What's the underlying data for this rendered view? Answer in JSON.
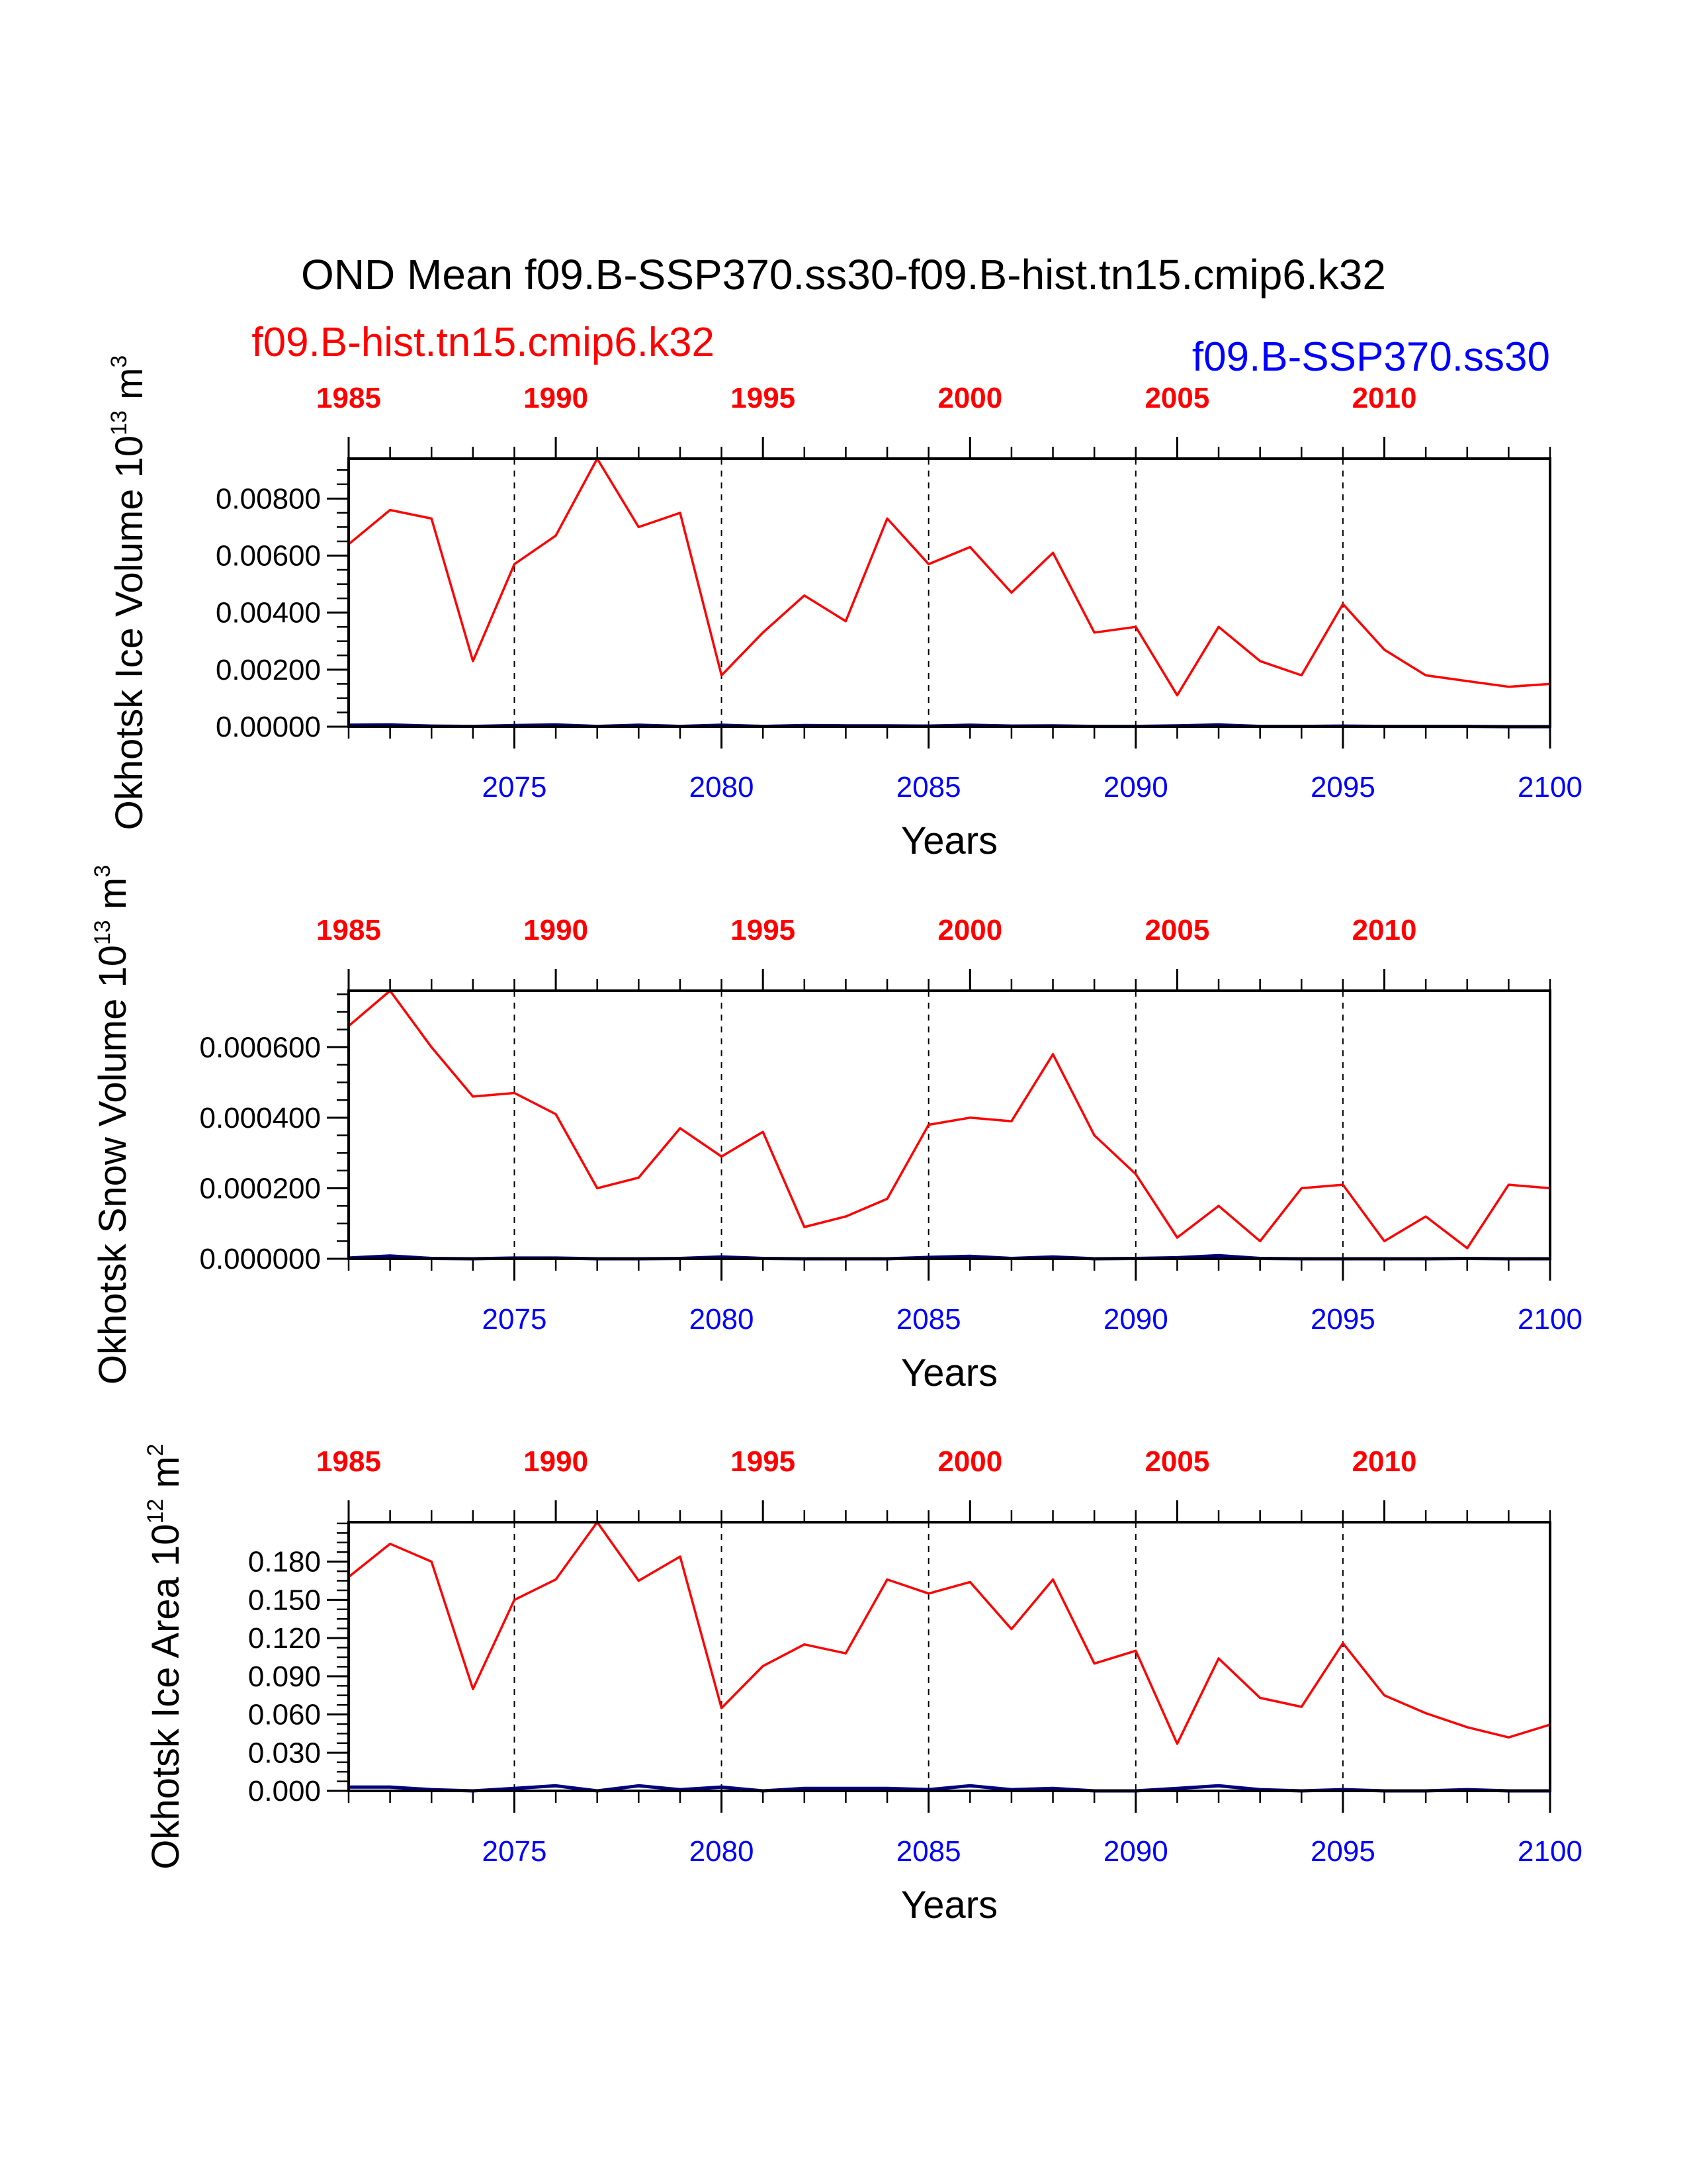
{
  "title": "OND Mean f09.B-SSP370.ss30-f09.B-hist.tn15.cmip6.k32",
  "colors": {
    "hist": "#ff0000",
    "ssp": "#0000ff",
    "ssp_line": "#000080",
    "axis": "#000000"
  },
  "experiments": [
    {
      "name": "f09.B-hist.tn15.cmip6.k32",
      "color": "#ff0000"
    },
    {
      "name": "f09.B-SSP370.ss30",
      "color": "#0000ff"
    }
  ],
  "chart_data": [
    {
      "type": "line",
      "ylabel_main": "Okhotsk Ice Volume 10",
      "ylabel_exp": "13",
      "ylabel_unit": " m",
      "ylabel_unit_exp": "3",
      "xlabel": "Years",
      "xlim": [
        2071,
        2100
      ],
      "ylim": [
        0,
        0.0094
      ],
      "yticks": [
        0,
        0.002,
        0.004,
        0.006,
        0.008
      ],
      "yticklabels": [
        "0.00000",
        "0.00200",
        "0.00400",
        "0.00600",
        "0.00800"
      ],
      "yminor": 0.0005,
      "bottom_ticks": [
        "2075",
        "2080",
        "2085",
        "2090",
        "2095",
        "2100"
      ],
      "top_ticks": [
        "1985",
        "1990",
        "1995",
        "2000",
        "2005",
        "2010"
      ],
      "series": [
        {
          "name": "f09.B-hist.tn15.cmip6.k32",
          "x": [
            2071,
            2072,
            2073,
            2074,
            2075,
            2076,
            2077,
            2078,
            2079,
            2080,
            2081,
            2082,
            2083,
            2084,
            2085,
            2086,
            2087,
            2088,
            2089,
            2090,
            2091,
            2092,
            2093,
            2094,
            2095,
            2096,
            2097,
            2098,
            2099,
            2100
          ],
          "values": [
            0.0064,
            0.0076,
            0.0073,
            0.0023,
            0.0057,
            0.0067,
            0.0094,
            0.007,
            0.0075,
            0.0018,
            0.0033,
            0.0046,
            0.0037,
            0.0073,
            0.0057,
            0.0063,
            0.0047,
            0.0061,
            0.0033,
            0.0035,
            0.0011,
            0.0035,
            0.0023,
            0.0018,
            0.0043,
            0.0027,
            0.0018,
            0.0016,
            0.0014,
            0.0015
          ]
        },
        {
          "name": "f09.B-SSP370.ss30",
          "x": [
            2071,
            2072,
            2073,
            2074,
            2075,
            2076,
            2077,
            2078,
            2079,
            2080,
            2081,
            2082,
            2083,
            2084,
            2085,
            2086,
            2087,
            2088,
            2089,
            2090,
            2091,
            2092,
            2093,
            2094,
            2095,
            2096,
            2097,
            2098,
            2099,
            2100
          ],
          "values": [
            5e-05,
            6e-05,
            2e-05,
            1e-05,
            4e-05,
            6e-05,
            1e-05,
            5e-05,
            1e-05,
            5e-05,
            1e-05,
            4e-05,
            3e-05,
            3e-05,
            2e-05,
            5e-05,
            2e-05,
            3e-05,
            1e-05,
            1e-05,
            3e-05,
            6e-05,
            1e-05,
            1e-05,
            2e-05,
            1e-05,
            1e-05,
            1e-05,
            0,
            0
          ]
        }
      ]
    },
    {
      "type": "line",
      "ylabel_main": "Okhotsk Snow Volume 10",
      "ylabel_exp": "13",
      "ylabel_unit": " m",
      "ylabel_unit_exp": "3",
      "xlabel": "Years",
      "xlim": [
        2071,
        2100
      ],
      "ylim": [
        0,
        0.00076
      ],
      "yticks": [
        0,
        0.0002,
        0.0004,
        0.0006
      ],
      "yticklabels": [
        "0.000000",
        "0.000200",
        "0.000400",
        "0.000600"
      ],
      "yminor": 5e-05,
      "bottom_ticks": [
        "2075",
        "2080",
        "2085",
        "2090",
        "2095",
        "2100"
      ],
      "top_ticks": [
        "1985",
        "1990",
        "1995",
        "2000",
        "2005",
        "2010"
      ],
      "series": [
        {
          "name": "f09.B-hist.tn15.cmip6.k32",
          "x": [
            2071,
            2072,
            2073,
            2074,
            2075,
            2076,
            2077,
            2078,
            2079,
            2080,
            2081,
            2082,
            2083,
            2084,
            2085,
            2086,
            2087,
            2088,
            2089,
            2090,
            2091,
            2092,
            2093,
            2094,
            2095,
            2096,
            2097,
            2098,
            2099,
            2100
          ],
          "values": [
            0.00066,
            0.00076,
            0.0006,
            0.00046,
            0.00047,
            0.00041,
            0.0002,
            0.00023,
            0.00037,
            0.00029,
            0.00036,
            9e-05,
            0.00012,
            0.00017,
            0.00038,
            0.0004,
            0.00039,
            0.00058,
            0.00035,
            0.00024,
            6e-05,
            0.00015,
            5e-05,
            0.0002,
            0.00021,
            5e-05,
            0.00012,
            3e-05,
            0.00021,
            0.0002
          ]
        },
        {
          "name": "f09.B-SSP370.ss30",
          "x": [
            2071,
            2072,
            2073,
            2074,
            2075,
            2076,
            2077,
            2078,
            2079,
            2080,
            2081,
            2082,
            2083,
            2084,
            2085,
            2086,
            2087,
            2088,
            2089,
            2090,
            2091,
            2092,
            2093,
            2094,
            2095,
            2096,
            2097,
            2098,
            2099,
            2100
          ],
          "values": [
            2e-06,
            8e-06,
            1e-06,
            0,
            2e-06,
            2e-06,
            0,
            0,
            1e-06,
            5e-06,
            1e-06,
            0,
            0,
            0,
            4e-06,
            7e-06,
            1e-06,
            5e-06,
            0,
            1e-06,
            3e-06,
            9e-06,
            1e-06,
            0,
            0,
            0,
            0,
            1e-06,
            0,
            0
          ]
        }
      ]
    },
    {
      "type": "line",
      "ylabel_main": "Okhotsk Ice Area 10",
      "ylabel_exp": "12",
      "ylabel_unit": " m",
      "ylabel_unit_exp": "2",
      "xlabel": "Years",
      "xlim": [
        2071,
        2100
      ],
      "ylim": [
        0,
        0.211
      ],
      "yticks": [
        0,
        0.03,
        0.06,
        0.09,
        0.12,
        0.15,
        0.18
      ],
      "yticklabels": [
        "0.000",
        "0.030",
        "0.060",
        "0.090",
        "0.120",
        "0.150",
        "0.180"
      ],
      "yminor": 0.0075,
      "bottom_ticks": [
        "2075",
        "2080",
        "2085",
        "2090",
        "2095",
        "2100"
      ],
      "top_ticks": [
        "1985",
        "1990",
        "1995",
        "2000",
        "2005",
        "2010"
      ],
      "series": [
        {
          "name": "f09.B-hist.tn15.cmip6.k32",
          "x": [
            2071,
            2072,
            2073,
            2074,
            2075,
            2076,
            2077,
            2078,
            2079,
            2080,
            2081,
            2082,
            2083,
            2084,
            2085,
            2086,
            2087,
            2088,
            2089,
            2090,
            2091,
            2092,
            2093,
            2094,
            2095,
            2096,
            2097,
            2098,
            2099,
            2100
          ],
          "values": [
            0.168,
            0.194,
            0.18,
            0.08,
            0.15,
            0.166,
            0.211,
            0.165,
            0.184,
            0.065,
            0.098,
            0.115,
            0.108,
            0.166,
            0.155,
            0.164,
            0.127,
            0.166,
            0.1,
            0.11,
            0.037,
            0.104,
            0.073,
            0.066,
            0.116,
            0.075,
            0.061,
            0.05,
            0.042,
            0.052
          ]
        },
        {
          "name": "f09.B-SSP370.ss30",
          "x": [
            2071,
            2072,
            2073,
            2074,
            2075,
            2076,
            2077,
            2078,
            2079,
            2080,
            2081,
            2082,
            2083,
            2084,
            2085,
            2086,
            2087,
            2088,
            2089,
            2090,
            2091,
            2092,
            2093,
            2094,
            2095,
            2096,
            2097,
            2098,
            2099,
            2100
          ],
          "values": [
            0.003,
            0.003,
            0.001,
            0,
            0.002,
            0.004,
            0,
            0.004,
            0.001,
            0.003,
            0,
            0.002,
            0.002,
            0.002,
            0.001,
            0.004,
            0.001,
            0.002,
            0,
            0,
            0.002,
            0.004,
            0.001,
            0,
            0.001,
            0,
            0,
            0.001,
            0,
            0
          ]
        }
      ]
    }
  ]
}
